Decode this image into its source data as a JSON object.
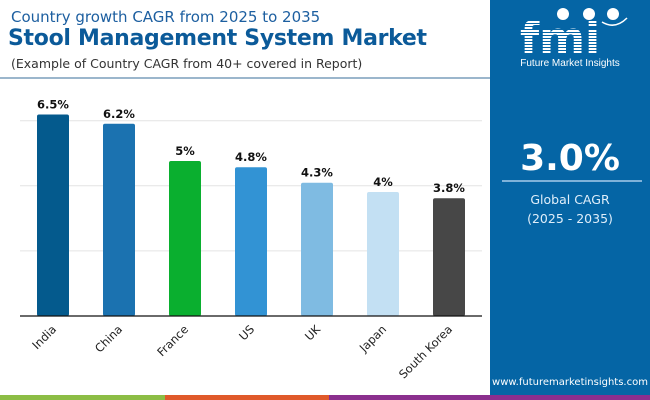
{
  "header": {
    "subtitle": "Country growth CAGR from 2025 to 2035",
    "title": "Stool Management System Market",
    "note": "(Example of Country CAGR from 40+ covered in Report)"
  },
  "brand": {
    "logo_letters": "fmi",
    "logo_name": "Future Market Insights",
    "url": "www.futuremarketinsights.com",
    "panel_color": "#0565a5"
  },
  "summary": {
    "value": "3.0%",
    "label_line1": "Global CAGR",
    "label_line2": "(2025 - 2035)"
  },
  "bottom_bar_colors": [
    "#8cbd45",
    "#e0592a",
    "#8b2f8e"
  ],
  "chart_data": {
    "type": "bar",
    "title": "Stool Management System Market",
    "xlabel": "",
    "ylabel": "",
    "categories": [
      "India",
      "China",
      "France",
      "US",
      "UK",
      "Japan",
      "South Korea"
    ],
    "values": [
      6.5,
      6.2,
      5.0,
      4.8,
      4.3,
      4.0,
      3.8
    ],
    "labels": [
      "6.5%",
      "6.2%",
      "5%",
      "4.8%",
      "4.3%",
      "4%",
      "3.8%"
    ],
    "colors": [
      "#045a8d",
      "#1b72b0",
      "#0aaf2f",
      "#3293d4",
      "#7fbbe2",
      "#c3e0f3",
      "#474747"
    ],
    "ylim": [
      0,
      7
    ],
    "grid": true,
    "legend": "none"
  }
}
